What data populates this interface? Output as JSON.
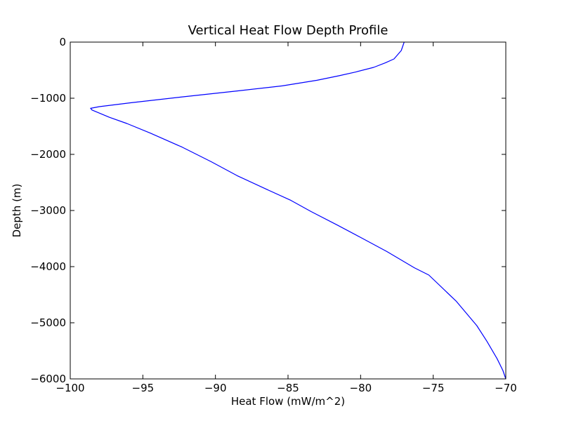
{
  "chart_data": {
    "type": "line",
    "title": "Vertical Heat Flow Depth Profile",
    "xlabel": "Heat Flow (mW/m^2)",
    "ylabel": "Depth (m)",
    "xlim": [
      -100,
      -70
    ],
    "ylim": [
      -6000,
      0
    ],
    "xticks": [
      -100,
      -95,
      -90,
      -85,
      -80,
      -75,
      -70
    ],
    "yticks": [
      0,
      -1000,
      -2000,
      -3000,
      -4000,
      -5000,
      -6000
    ],
    "xtick_labels": [
      "−100",
      "−95",
      "−90",
      "−85",
      "−80",
      "−75",
      "−70"
    ],
    "ytick_labels": [
      "0",
      "−1000",
      "−2000",
      "−3000",
      "−4000",
      "−5000",
      "−6000"
    ],
    "grid": false,
    "colors": {
      "line": "#0000ff",
      "axes": "#000000"
    },
    "series": [
      {
        "x": [
          -77.0,
          -77.2,
          -77.7,
          -78.3,
          -79.1,
          -80.3,
          -81.5,
          -83.0,
          -85.4,
          -88.5,
          -92.4,
          -95.8,
          -98.0,
          -98.6,
          -98.5,
          -97.3,
          -96.1,
          -94.5,
          -92.3,
          -90.3,
          -88.5,
          -86.5,
          -84.8,
          -83.4,
          -81.6,
          -80.0,
          -78.2,
          -76.3,
          -75.3,
          -73.4,
          -72.0,
          -71.3,
          -70.6,
          -70.2,
          -70.0
        ],
        "y": [
          0,
          -150,
          -300,
          -370,
          -450,
          -530,
          -600,
          -680,
          -780,
          -870,
          -980,
          -1080,
          -1150,
          -1180,
          -1210,
          -1340,
          -1450,
          -1620,
          -1870,
          -2130,
          -2380,
          -2620,
          -2820,
          -3020,
          -3260,
          -3480,
          -3730,
          -4020,
          -4150,
          -4620,
          -5050,
          -5330,
          -5640,
          -5850,
          -6000
        ]
      }
    ]
  }
}
